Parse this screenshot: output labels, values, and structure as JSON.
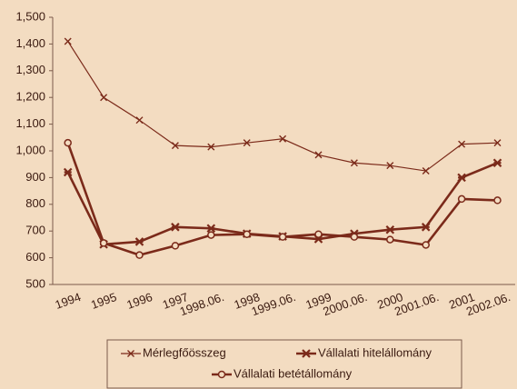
{
  "chart_data": {
    "type": "line",
    "categories": [
      "1994",
      "1995",
      "1996",
      "1997",
      "1998.06.",
      "1998",
      "1999.06.",
      "1999",
      "2000.06.",
      "2000",
      "2001.06.",
      "2001",
      "2002.06."
    ],
    "series": [
      {
        "name": "Mérlegfőösszeg",
        "color": "#7b2a1a",
        "marker": "x",
        "width": 1.2,
        "values": [
          1410,
          1200,
          1115,
          1020,
          1015,
          1030,
          1045,
          985,
          955,
          945,
          925,
          1025,
          1030
        ]
      },
      {
        "name": "Vállalati hitelállomány",
        "color": "#7b2a1a",
        "marker": "star",
        "width": 2.6,
        "values": [
          920,
          650,
          660,
          715,
          710,
          690,
          680,
          670,
          690,
          705,
          715,
          900,
          955
        ]
      },
      {
        "name": "Vállalati betétállomány",
        "color": "#7b2a1a",
        "marker": "circle",
        "width": 2.6,
        "values": [
          1030,
          655,
          610,
          645,
          685,
          688,
          678,
          688,
          678,
          668,
          648,
          820,
          815
        ]
      }
    ],
    "ylim": [
      500,
      1500
    ],
    "yticks": [
      500,
      600,
      700,
      800,
      900,
      {
        "value": 1000,
        "label": "1,000"
      },
      {
        "value": 1100,
        "label": "1,100"
      },
      {
        "value": 1200,
        "label": "1,200"
      },
      {
        "value": 1300,
        "label": "1,300"
      },
      {
        "value": 1400,
        "label": "1,400"
      },
      {
        "value": 1500,
        "label": "1,500"
      }
    ],
    "grid": false
  }
}
